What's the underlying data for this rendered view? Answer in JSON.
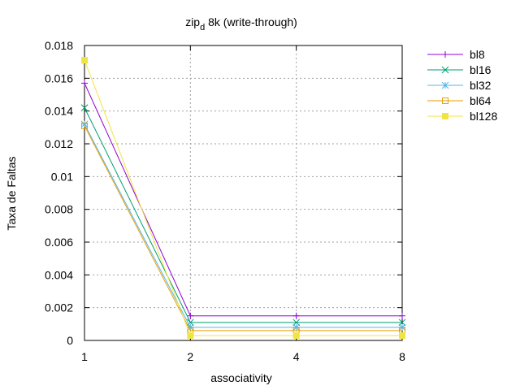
{
  "chart_data": {
    "type": "line",
    "title_main": "zip",
    "title_sub": "d",
    "title_rest": " 8k (write-through)",
    "xlabel": "associativity",
    "ylabel": "Taxa de Faltas",
    "categories": [
      "1",
      "2",
      "4",
      "8"
    ],
    "ylim": [
      0,
      0.018
    ],
    "yticks": [
      "0",
      "0.002",
      "0.004",
      "0.006",
      "0.008",
      "0.01",
      "0.012",
      "0.014",
      "0.016",
      "0.018"
    ],
    "grid": true,
    "legend_position": "outside-right",
    "series": [
      {
        "name": "bl8",
        "color": "#9400d3",
        "marker": "plus",
        "values": [
          0.0157,
          0.0015,
          0.0015,
          0.0015
        ]
      },
      {
        "name": "bl16",
        "color": "#009e73",
        "marker": "cross",
        "values": [
          0.0142,
          0.0011,
          0.0011,
          0.0011
        ]
      },
      {
        "name": "bl32",
        "color": "#56b4e9",
        "marker": "star",
        "values": [
          0.0132,
          0.0008,
          0.0008,
          0.0008
        ]
      },
      {
        "name": "bl64",
        "color": "#e69f00",
        "marker": "open-square",
        "values": [
          0.0131,
          0.0006,
          0.0006,
          0.0006
        ]
      },
      {
        "name": "bl128",
        "color": "#f0e442",
        "marker": "filled-square",
        "values": [
          0.0171,
          0.0003,
          0.0003,
          0.0003
        ]
      }
    ]
  }
}
